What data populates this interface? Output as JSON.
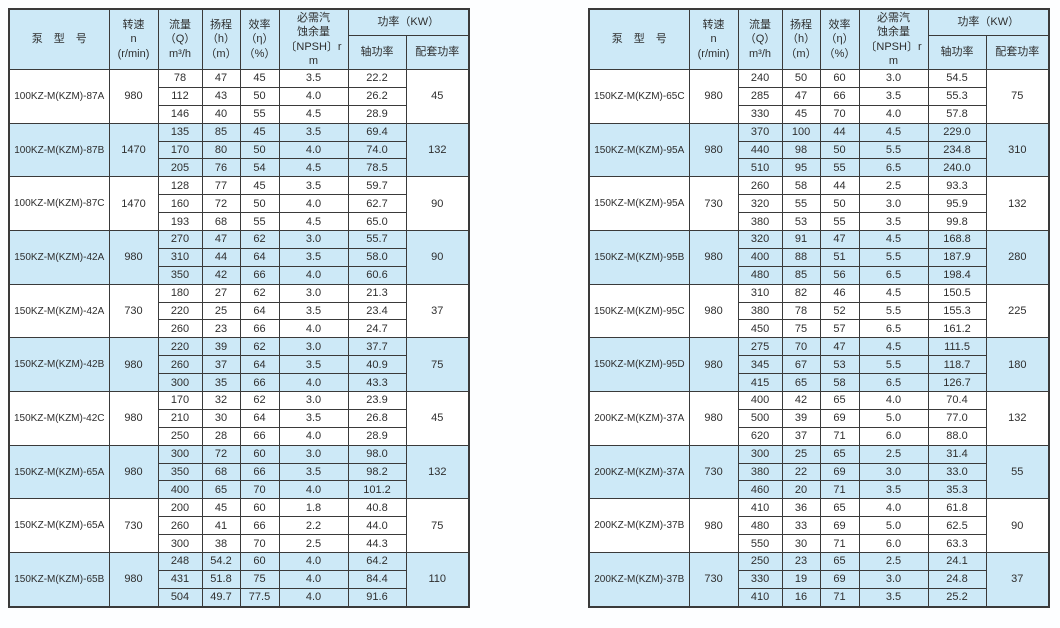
{
  "header": {
    "pump_model": "泵　型　号",
    "speed_lines": [
      "转速",
      "n",
      "(r/min)"
    ],
    "flow_lines": [
      "流量",
      "（Q）",
      "m³/h"
    ],
    "head_lines": [
      "扬程",
      "（h）",
      "（m）"
    ],
    "eff_lines": [
      "效率",
      "（η）",
      "（%）"
    ],
    "npsh_lines": [
      "必需汽",
      "蚀余量",
      "〔NPSH〕r",
      "m"
    ],
    "power_group": "功率（KW）",
    "shaft_power": "轴功率",
    "matched_power": "配套功率"
  },
  "colors": {
    "shaded_row": "#cde9f7",
    "border": "#3a3a3a",
    "text": "#2e2e2e"
  },
  "tables": [
    {
      "groups": [
        {
          "model": "100KZ-M(KZM)-87A",
          "speed": "980",
          "shaded": false,
          "matched": "45",
          "rows": [
            [
              "78",
              "47",
              "45",
              "3.5",
              "22.2"
            ],
            [
              "112",
              "43",
              "50",
              "4.0",
              "26.2"
            ],
            [
              "146",
              "40",
              "55",
              "4.5",
              "28.9"
            ]
          ]
        },
        {
          "model": "100KZ-M(KZM)-87B",
          "speed": "1470",
          "shaded": true,
          "matched": "132",
          "rows": [
            [
              "135",
              "85",
              "45",
              "3.5",
              "69.4"
            ],
            [
              "170",
              "80",
              "50",
              "4.0",
              "74.0"
            ],
            [
              "205",
              "76",
              "54",
              "4.5",
              "78.5"
            ]
          ]
        },
        {
          "model": "100KZ-M(KZM)-87C",
          "speed": "1470",
          "shaded": false,
          "matched": "90",
          "rows": [
            [
              "128",
              "77",
              "45",
              "3.5",
              "59.7"
            ],
            [
              "160",
              "72",
              "50",
              "4.0",
              "62.7"
            ],
            [
              "193",
              "68",
              "55",
              "4.5",
              "65.0"
            ]
          ]
        },
        {
          "model": "150KZ-M(KZM)-42A",
          "speed": "980",
          "shaded": true,
          "matched": "90",
          "rows": [
            [
              "270",
              "47",
              "62",
              "3.0",
              "55.7"
            ],
            [
              "310",
              "44",
              "64",
              "3.5",
              "58.0"
            ],
            [
              "350",
              "42",
              "66",
              "4.0",
              "60.6"
            ]
          ]
        },
        {
          "model": "150KZ-M(KZM)-42A",
          "speed": "730",
          "shaded": false,
          "matched": "37",
          "rows": [
            [
              "180",
              "27",
              "62",
              "3.0",
              "21.3"
            ],
            [
              "220",
              "25",
              "64",
              "3.5",
              "23.4"
            ],
            [
              "260",
              "23",
              "66",
              "4.0",
              "24.7"
            ]
          ]
        },
        {
          "model": "150KZ-M(KZM)-42B",
          "speed": "980",
          "shaded": true,
          "matched": "75",
          "rows": [
            [
              "220",
              "39",
              "62",
              "3.0",
              "37.7"
            ],
            [
              "260",
              "37",
              "64",
              "3.5",
              "40.9"
            ],
            [
              "300",
              "35",
              "66",
              "4.0",
              "43.3"
            ]
          ]
        },
        {
          "model": "150KZ-M(KZM)-42C",
          "speed": "980",
          "shaded": false,
          "matched": "45",
          "rows": [
            [
              "170",
              "32",
              "62",
              "3.0",
              "23.9"
            ],
            [
              "210",
              "30",
              "64",
              "3.5",
              "26.8"
            ],
            [
              "250",
              "28",
              "66",
              "4.0",
              "28.9"
            ]
          ]
        },
        {
          "model": "150KZ-M(KZM)-65A",
          "speed": "980",
          "shaded": true,
          "matched": "132",
          "rows": [
            [
              "300",
              "72",
              "60",
              "3.0",
              "98.0"
            ],
            [
              "350",
              "68",
              "66",
              "3.5",
              "98.2"
            ],
            [
              "400",
              "65",
              "70",
              "4.0",
              "101.2"
            ]
          ]
        },
        {
          "model": "150KZ-M(KZM)-65A",
          "speed": "730",
          "shaded": false,
          "matched": "75",
          "rows": [
            [
              "200",
              "45",
              "60",
              "1.8",
              "40.8"
            ],
            [
              "260",
              "41",
              "66",
              "2.2",
              "44.0"
            ],
            [
              "300",
              "38",
              "70",
              "2.5",
              "44.3"
            ]
          ]
        },
        {
          "model": "150KZ-M(KZM)-65B",
          "speed": "980",
          "shaded": true,
          "matched": "110",
          "rows": [
            [
              "248",
              "54.2",
              "60",
              "4.0",
              "64.2"
            ],
            [
              "431",
              "51.8",
              "75",
              "4.0",
              "84.4"
            ],
            [
              "504",
              "49.7",
              "77.5",
              "4.0",
              "91.6"
            ]
          ]
        }
      ]
    },
    {
      "groups": [
        {
          "model": "150KZ-M(KZM)-65C",
          "speed": "980",
          "shaded": false,
          "matched": "75",
          "rows": [
            [
              "240",
              "50",
              "60",
              "3.0",
              "54.5"
            ],
            [
              "285",
              "47",
              "66",
              "3.5",
              "55.3"
            ],
            [
              "330",
              "45",
              "70",
              "4.0",
              "57.8"
            ]
          ]
        },
        {
          "model": "150KZ-M(KZM)-95A",
          "speed": "980",
          "shaded": true,
          "matched": "310",
          "rows": [
            [
              "370",
              "100",
              "44",
              "4.5",
              "229.0"
            ],
            [
              "440",
              "98",
              "50",
              "5.5",
              "234.8"
            ],
            [
              "510",
              "95",
              "55",
              "6.5",
              "240.0"
            ]
          ]
        },
        {
          "model": "150KZ-M(KZM)-95A",
          "speed": "730",
          "shaded": false,
          "matched": "132",
          "rows": [
            [
              "260",
              "58",
              "44",
              "2.5",
              "93.3"
            ],
            [
              "320",
              "55",
              "50",
              "3.0",
              "95.9"
            ],
            [
              "380",
              "53",
              "55",
              "3.5",
              "99.8"
            ]
          ]
        },
        {
          "model": "150KZ-M(KZM)-95B",
          "speed": "980",
          "shaded": true,
          "matched": "280",
          "rows": [
            [
              "320",
              "91",
              "47",
              "4.5",
              "168.8"
            ],
            [
              "400",
              "88",
              "51",
              "5.5",
              "187.9"
            ],
            [
              "480",
              "85",
              "56",
              "6.5",
              "198.4"
            ]
          ]
        },
        {
          "model": "150KZ-M(KZM)-95C",
          "speed": "980",
          "shaded": false,
          "matched": "225",
          "rows": [
            [
              "310",
              "82",
              "46",
              "4.5",
              "150.5"
            ],
            [
              "380",
              "78",
              "52",
              "5.5",
              "155.3"
            ],
            [
              "450",
              "75",
              "57",
              "6.5",
              "161.2"
            ]
          ]
        },
        {
          "model": "150KZ-M(KZM)-95D",
          "speed": "980",
          "shaded": true,
          "matched": "180",
          "rows": [
            [
              "275",
              "70",
              "47",
              "4.5",
              "111.5"
            ],
            [
              "345",
              "67",
              "53",
              "5.5",
              "118.7"
            ],
            [
              "415",
              "65",
              "58",
              "6.5",
              "126.7"
            ]
          ]
        },
        {
          "model": "200KZ-M(KZM)-37A",
          "speed": "980",
          "shaded": false,
          "matched": "132",
          "rows": [
            [
              "400",
              "42",
              "65",
              "4.0",
              "70.4"
            ],
            [
              "500",
              "39",
              "69",
              "5.0",
              "77.0"
            ],
            [
              "620",
              "37",
              "71",
              "6.0",
              "88.0"
            ]
          ]
        },
        {
          "model": "200KZ-M(KZM)-37A",
          "speed": "730",
          "shaded": true,
          "matched": "55",
          "rows": [
            [
              "300",
              "25",
              "65",
              "2.5",
              "31.4"
            ],
            [
              "380",
              "22",
              "69",
              "3.0",
              "33.0"
            ],
            [
              "460",
              "20",
              "71",
              "3.5",
              "35.3"
            ]
          ]
        },
        {
          "model": "200KZ-M(KZM)-37B",
          "speed": "980",
          "shaded": false,
          "matched": "90",
          "rows": [
            [
              "410",
              "36",
              "65",
              "4.0",
              "61.8"
            ],
            [
              "480",
              "33",
              "69",
              "5.0",
              "62.5"
            ],
            [
              "550",
              "30",
              "71",
              "6.0",
              "63.3"
            ]
          ]
        },
        {
          "model": "200KZ-M(KZM)-37B",
          "speed": "730",
          "shaded": true,
          "matched": "37",
          "rows": [
            [
              "250",
              "23",
              "65",
              "2.5",
              "24.1"
            ],
            [
              "330",
              "19",
              "69",
              "3.0",
              "24.8"
            ],
            [
              "410",
              "16",
              "71",
              "3.5",
              "25.2"
            ]
          ]
        }
      ]
    }
  ]
}
